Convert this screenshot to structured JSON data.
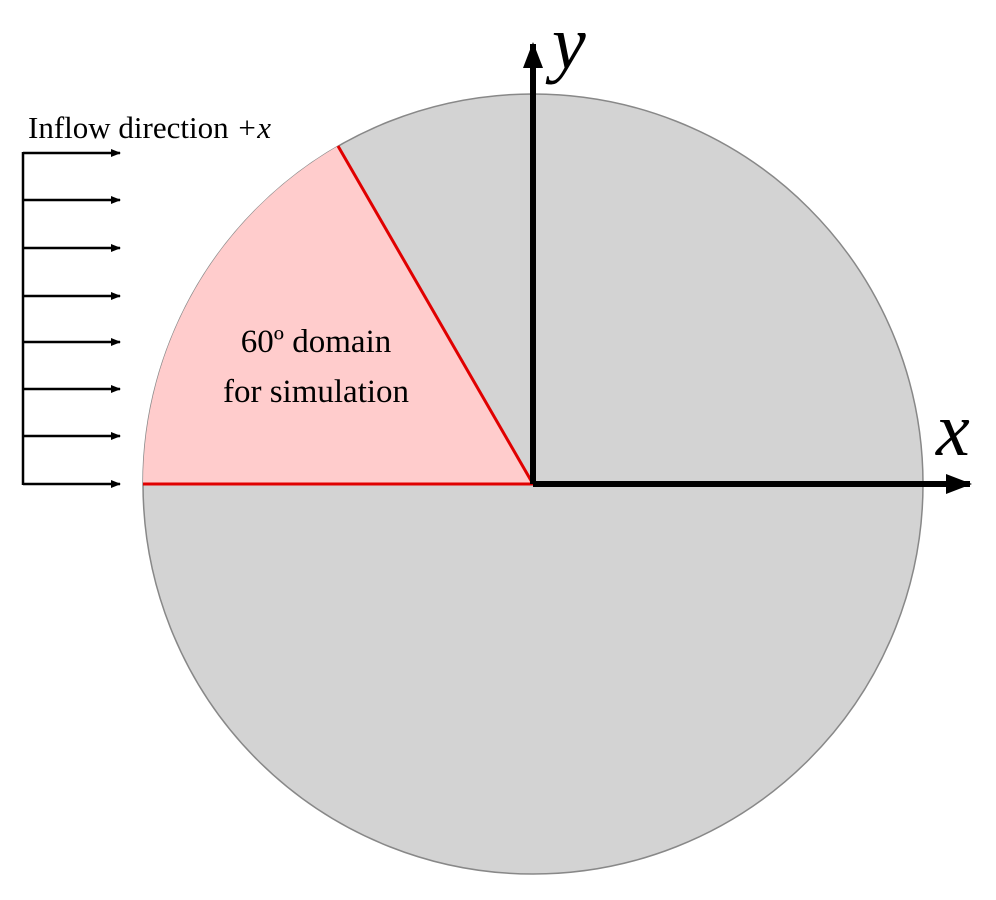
{
  "inflow": {
    "label": "Inflow direction",
    "direction": "+x"
  },
  "domain": {
    "lines": [
      "60º domain",
      "for simulation"
    ]
  },
  "axes": {
    "x": "x",
    "y": "y"
  }
}
